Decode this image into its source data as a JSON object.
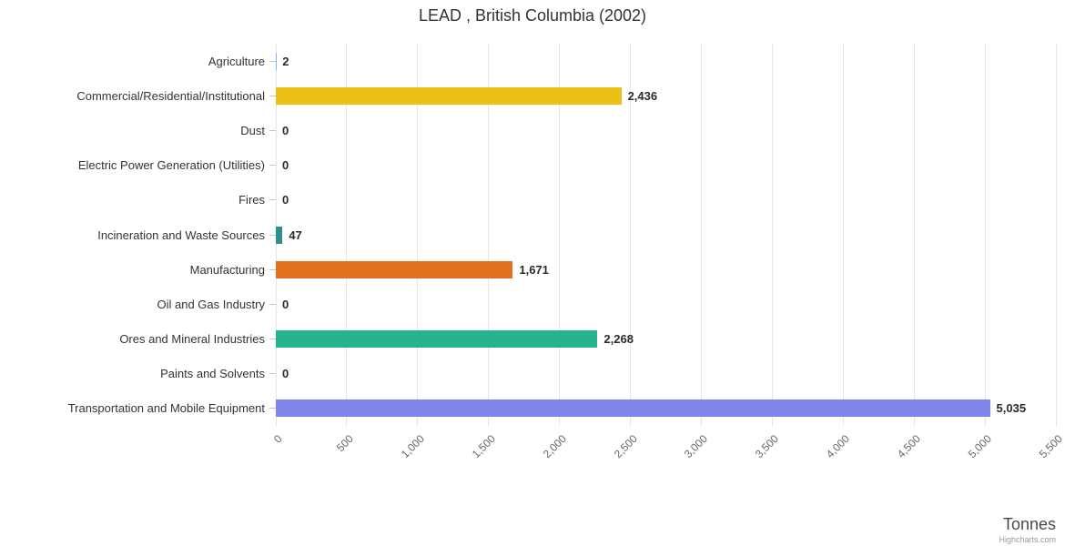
{
  "title": "LEAD , British Columbia (2002)",
  "axis": {
    "label": "Tonnes",
    "min": 0,
    "max": 5500,
    "tick_interval": 500
  },
  "credit": "Highcharts.com",
  "chart_data": {
    "type": "bar",
    "orientation": "horizontal",
    "title": "LEAD , British Columbia (2002)",
    "xlabel": "Tonnes",
    "xlim": [
      0,
      5500
    ],
    "grid": true,
    "legend": false,
    "categories": [
      "Agriculture",
      "Commercial/Residential/Institutional",
      "Dust",
      "Electric Power Generation (Utilities)",
      "Fires",
      "Incineration and Waste Sources",
      "Manufacturing",
      "Oil and Gas Industry",
      "Ores and Mineral Industries",
      "Paints and Solvents",
      "Transportation and Mobile Equipment"
    ],
    "values": [
      2,
      2436,
      0,
      0,
      0,
      47,
      1671,
      0,
      2268,
      0,
      5035
    ],
    "value_labels": [
      "2",
      "2,436",
      "0",
      "0",
      "0",
      "47",
      "1,671",
      "0",
      "2,268",
      "0",
      "5,035"
    ],
    "colors": [
      "#7cb5ec",
      "#ecc115",
      "#90ed7d",
      "#f7a35c",
      "#f15c80",
      "#2b908f",
      "#e2711d",
      "#434348",
      "#26b48f",
      "#91e8e1",
      "#8085e9"
    ],
    "ticks": [
      {
        "value": 0,
        "label": "0"
      },
      {
        "value": 500,
        "label": "500"
      },
      {
        "value": 1000,
        "label": "1,000"
      },
      {
        "value": 1500,
        "label": "1,500"
      },
      {
        "value": 2000,
        "label": "2,000"
      },
      {
        "value": 2500,
        "label": "2,500"
      },
      {
        "value": 3000,
        "label": "3,000"
      },
      {
        "value": 3500,
        "label": "3,500"
      },
      {
        "value": 4000,
        "label": "4,000"
      },
      {
        "value": 4500,
        "label": "4,500"
      },
      {
        "value": 5000,
        "label": "5,000"
      },
      {
        "value": 5500,
        "label": "5,500"
      }
    ]
  }
}
